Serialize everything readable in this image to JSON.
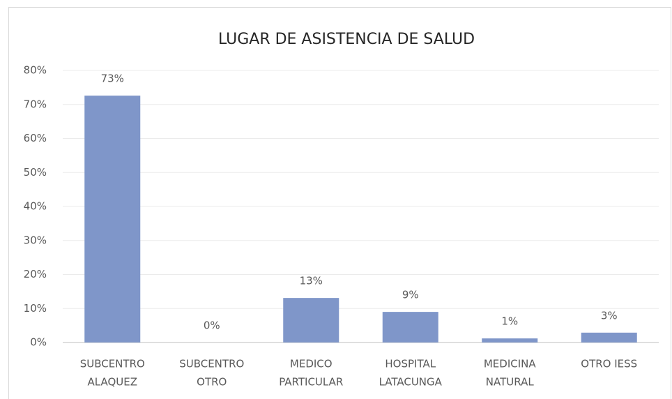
{
  "chart_data": {
    "type": "bar",
    "title": "LUGAR DE ASISTENCIA DE SALUD",
    "categories": [
      [
        "SUBCENTRO",
        "ALAQUEZ"
      ],
      [
        "SUBCENTRO",
        "OTRO"
      ],
      [
        "MEDICO",
        "PARTICULAR"
      ],
      [
        "HOSPITAL",
        "LATACUNGA"
      ],
      [
        "MEDICINA",
        "NATURAL"
      ],
      [
        "OTRO IESS"
      ]
    ],
    "values": [
      72.6,
      0,
      13.1,
      9,
      1.2,
      2.9
    ],
    "value_labels": [
      "73%",
      "0%",
      "13%",
      "9%",
      "1%",
      "3%"
    ],
    "color": "#7f96c9",
    "ylim": [
      0,
      80
    ],
    "yticks": [
      {
        "value": 0,
        "label": "0%"
      },
      {
        "value": 10,
        "label": "10%"
      },
      {
        "value": 20,
        "label": "20%"
      },
      {
        "value": 30,
        "label": "30%"
      },
      {
        "value": 40,
        "label": "40%"
      },
      {
        "value": 50,
        "label": "50%"
      },
      {
        "value": 60,
        "label": "60%"
      },
      {
        "value": 70,
        "label": "70%"
      },
      {
        "value": 80,
        "label": "80%"
      }
    ],
    "grid": true
  }
}
